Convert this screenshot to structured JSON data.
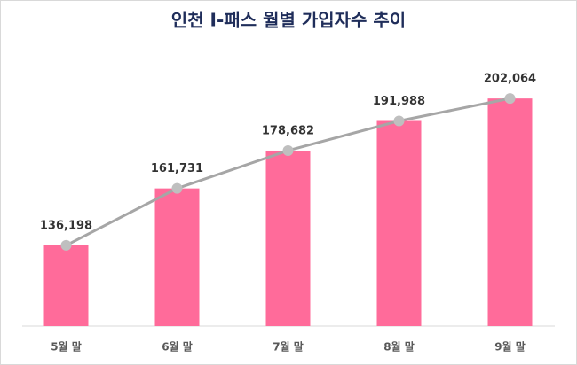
{
  "chart_data": {
    "type": "bar",
    "title": "인천 I-패스 월별 가입자수 추이",
    "categories": [
      "5월 말",
      "6월 말",
      "7월 말",
      "8월 말",
      "9월 말"
    ],
    "values": [
      136198,
      161731,
      178682,
      191988,
      202064
    ],
    "value_labels": [
      "136,198",
      "161,731",
      "178,682",
      "191,988",
      "202,064"
    ],
    "color": "#ff6b9a",
    "overlay_line": true,
    "line_color": "#a6a6a6",
    "ylim": [
      100000,
      220000
    ]
  }
}
